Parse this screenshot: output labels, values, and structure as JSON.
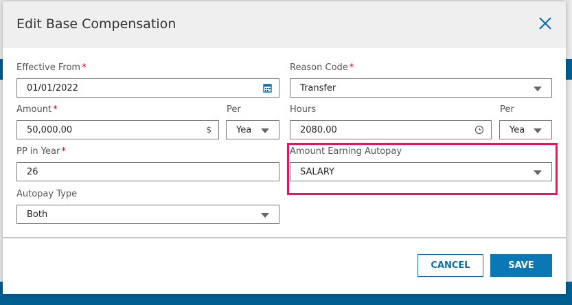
{
  "dialog": {
    "title": "Edit Base Compensation",
    "close_icon": "close-icon"
  },
  "fields": {
    "effective_from": {
      "label": "Effective From",
      "required": "*",
      "value": "01/01/2022",
      "icon": "calendar-icon"
    },
    "reason_code": {
      "label": "Reason Code",
      "required": "*",
      "value": "Transfer"
    },
    "amount": {
      "label": "Amount",
      "required": "*",
      "value": "50,000.00",
      "suffix": "$"
    },
    "amount_per": {
      "label": "Per",
      "value": "Yea"
    },
    "hours": {
      "label": "Hours",
      "value": "2080.00",
      "icon": "clock-icon"
    },
    "hours_per": {
      "label": "Per",
      "value": "Yea"
    },
    "pp_in_year": {
      "label": "PP in Year",
      "required": "*",
      "value": "26"
    },
    "amount_earning_autopay": {
      "label": "Amount Earning Autopay",
      "value": "SALARY"
    },
    "autopay_type": {
      "label": "Autopay Type",
      "value": "Both"
    }
  },
  "buttons": {
    "cancel": "CANCEL",
    "save": "SAVE"
  },
  "colors": {
    "primary": "#0a78b4",
    "highlight": "#e0195a",
    "required": "#d0021b"
  }
}
